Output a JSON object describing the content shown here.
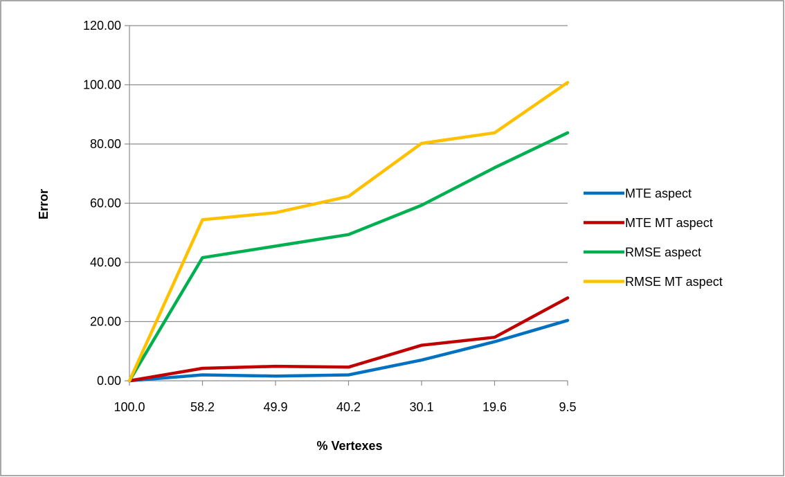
{
  "chart_data": {
    "type": "line",
    "title": "",
    "xlabel": "% Vertexes",
    "ylabel": "Error",
    "categories": [
      "100.0",
      "58.2",
      "49.9",
      "40.2",
      "30.1",
      "19.6",
      "9.5"
    ],
    "ylim": [
      0,
      120
    ],
    "yticks": [
      "0.00",
      "20.00",
      "40.00",
      "60.00",
      "80.00",
      "100.00",
      "120.00"
    ],
    "grid": true,
    "legend_position": "right",
    "series": [
      {
        "name": "MTE aspect",
        "color": "#0070C0",
        "values": [
          0.0,
          2.0,
          1.6,
          2.0,
          7.0,
          13.2,
          20.4
        ]
      },
      {
        "name": "MTE MT aspect",
        "color": "#C00000",
        "values": [
          0.0,
          4.2,
          4.9,
          4.6,
          12.0,
          14.7,
          28.0
        ]
      },
      {
        "name": "RMSE aspect",
        "color": "#00B050",
        "values": [
          0.0,
          41.6,
          45.5,
          49.4,
          59.3,
          72.0,
          83.8
        ]
      },
      {
        "name": "RMSE MT aspect",
        "color": "#FFC000",
        "values": [
          0.0,
          54.4,
          56.8,
          62.3,
          80.2,
          83.8,
          100.8
        ]
      }
    ]
  }
}
